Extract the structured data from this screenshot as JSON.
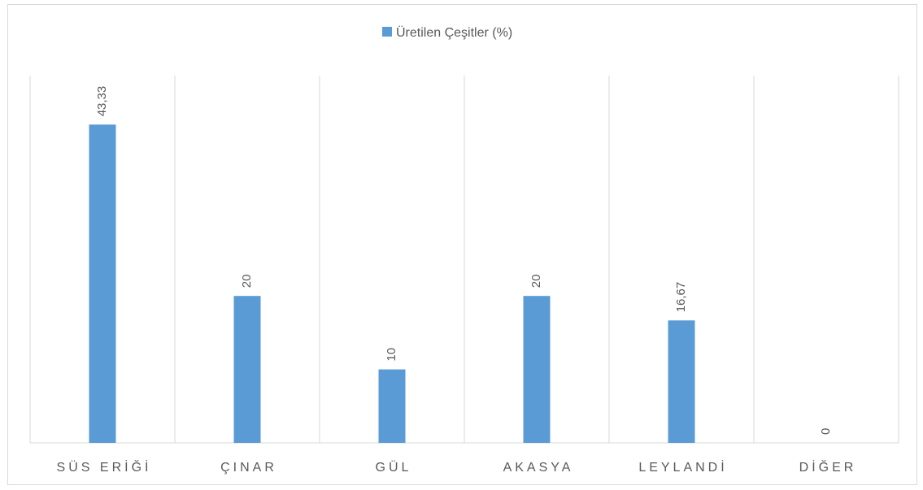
{
  "chart_data": {
    "type": "bar",
    "legend": "Üretilen Çeşitler (%)",
    "legend_position": "top",
    "categories": [
      "SÜS ERİĞİ",
      "ÇINAR",
      "GÜL",
      "AKASYA",
      "LEYLANDİ",
      "DİĞER"
    ],
    "values": [
      43.33,
      20,
      10,
      20,
      16.67,
      0
    ],
    "value_labels": [
      "43,33",
      "20",
      "10",
      "20",
      "16,67",
      "0"
    ],
    "color": "#5b9bd5",
    "ylim": [
      0,
      50
    ],
    "grid": "vertical"
  }
}
